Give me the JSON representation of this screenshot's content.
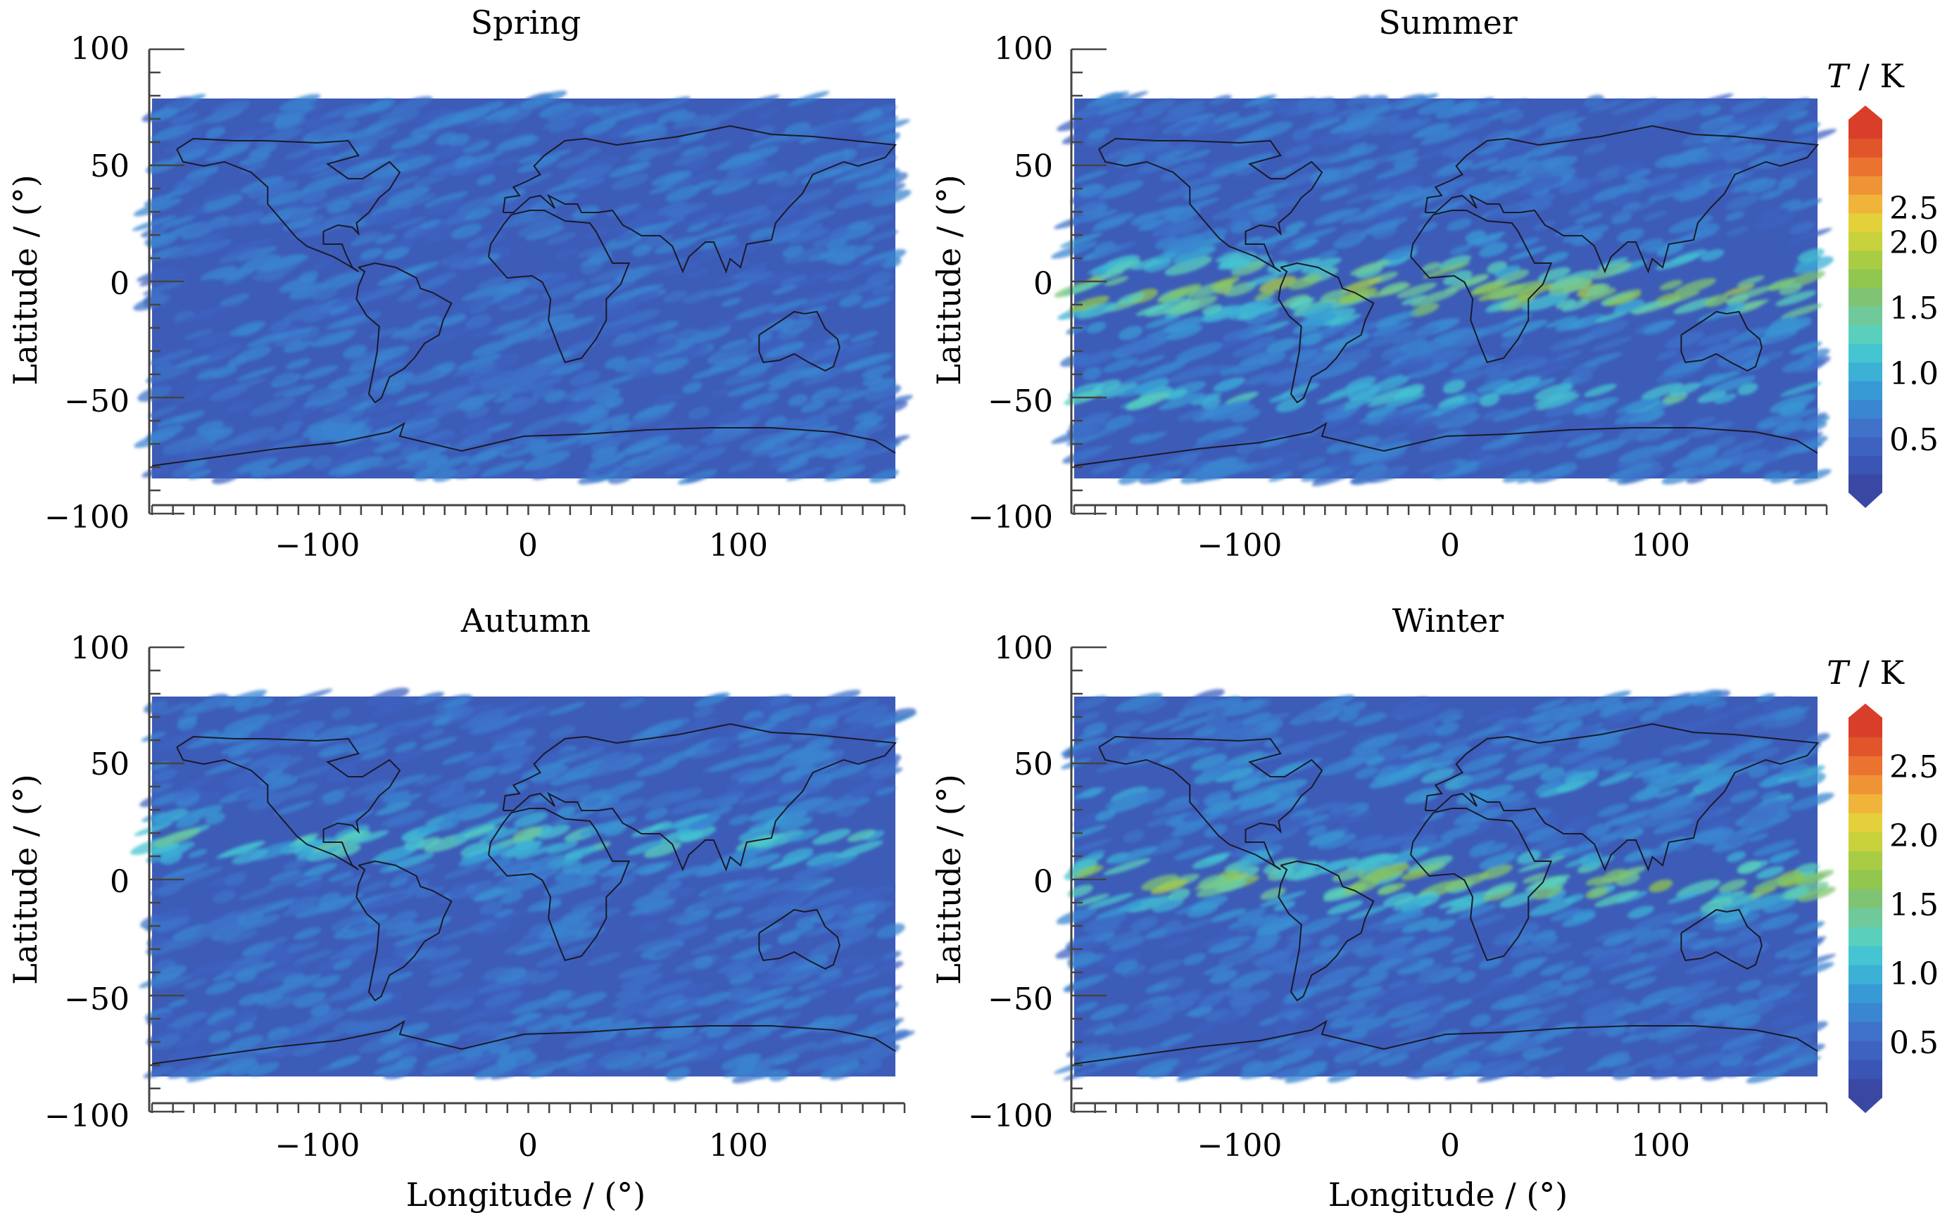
{
  "panels": [
    {
      "id": "spring",
      "title": "Spring",
      "ylabel": "Latitude / (°)",
      "xlabel": "",
      "colorbar": false,
      "bands": []
    },
    {
      "id": "summer",
      "title": "Summer",
      "ylabel": "Latitude / (°)",
      "xlabel": "",
      "colorbar": true,
      "bands": [
        {
          "lat": 0,
          "width": 14,
          "level": 1.55
        },
        {
          "lat": -50,
          "width": 6,
          "level": 1.05
        }
      ]
    },
    {
      "id": "autumn",
      "title": "Autumn",
      "ylabel": "Latitude / (°)",
      "xlabel": "Longitude / (°)",
      "colorbar": false,
      "bands": [
        {
          "lat": 22,
          "width": 10,
          "level": 1.1
        }
      ]
    },
    {
      "id": "winter",
      "title": "Winter",
      "ylabel": "Latitude / (°)",
      "xlabel": "Longitude / (°)",
      "colorbar": true,
      "bands": [
        {
          "lat": 2,
          "width": 12,
          "level": 1.45
        },
        {
          "lat": 48,
          "width": 8,
          "level": 0.85
        }
      ]
    }
  ],
  "axes": {
    "xlim": [
      -180,
      180
    ],
    "ylim": [
      -100,
      100
    ],
    "xticks": [
      -100,
      0,
      100
    ],
    "yticks": [
      100,
      50,
      0,
      -50,
      -100
    ],
    "xtick_labels": [
      "−100",
      "0",
      "100"
    ],
    "ytick_labels": [
      "100",
      "50",
      "0",
      "−50",
      "−100"
    ]
  },
  "colorbar": {
    "title_italic": "T",
    "title_rest": " / K",
    "tick_values": [
      2.5,
      2.0,
      1.5,
      1.0,
      0.5
    ],
    "tick_labels": [
      "2.5",
      "2.0",
      "1.5",
      "1.0",
      "0.5"
    ],
    "range": [
      0.1,
      2.9
    ],
    "colors": [
      "#3a48a4",
      "#3b55b4",
      "#3e62c0",
      "#3f72c8",
      "#3b86d0",
      "#389ad4",
      "#3db0d6",
      "#45c4d2",
      "#5ad0bc",
      "#6fc99a",
      "#7fc472",
      "#91c64f",
      "#a9cc45",
      "#c8d23d",
      "#e3d03a",
      "#f0b43a",
      "#ef9435",
      "#ea7330",
      "#e1552b",
      "#d83e2a"
    ]
  }
}
